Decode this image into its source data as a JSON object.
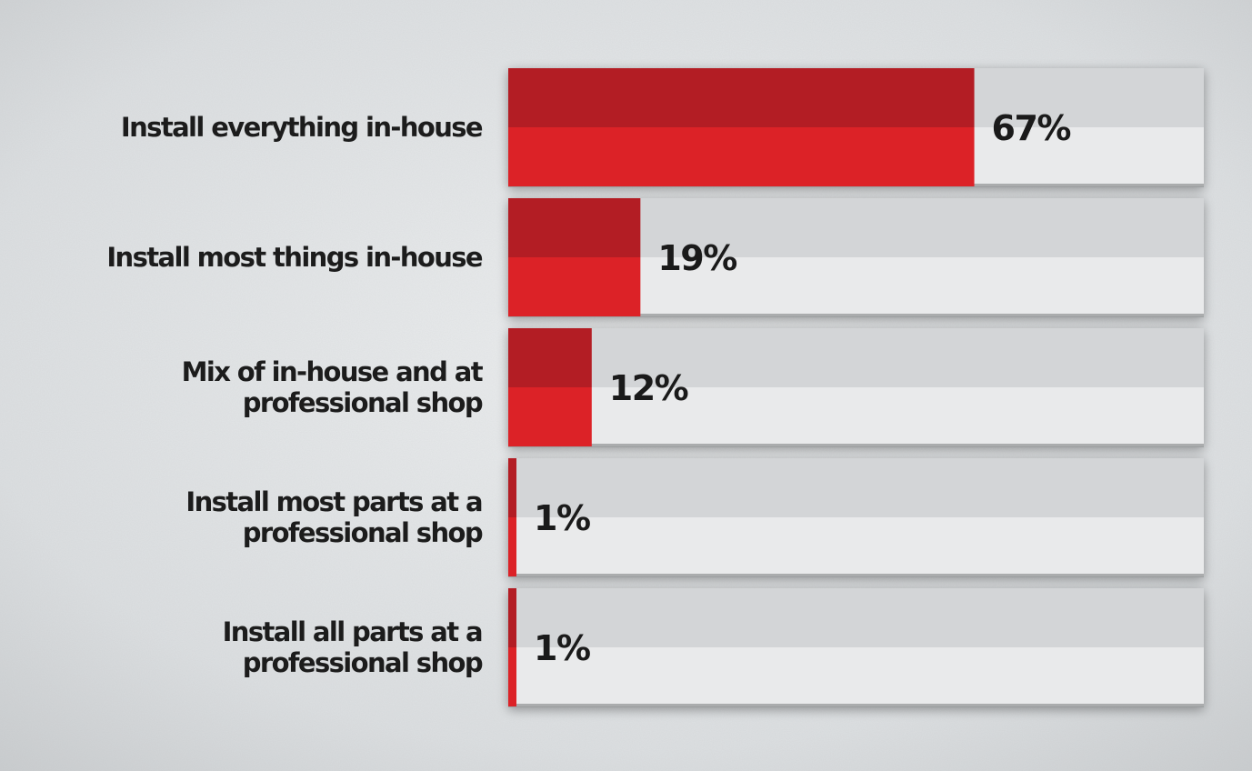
{
  "chart_data": {
    "type": "bar",
    "orientation": "horizontal",
    "categories": [
      [
        "Install everything in-house"
      ],
      [
        "Install most things in-house"
      ],
      [
        "Mix of in-house and at",
        "professional shop"
      ],
      [
        "Install most parts at a",
        "professional shop"
      ],
      [
        "Install all parts at a",
        "professional shop"
      ]
    ],
    "values": [
      67,
      19,
      12,
      1,
      1
    ],
    "value_labels": [
      "67%",
      "19%",
      "12%",
      "1%",
      "1%"
    ],
    "xlim": [
      0,
      100
    ],
    "grid": false,
    "legend": "none",
    "title": "",
    "xlabel": "",
    "ylabel": ""
  },
  "colors": {
    "background": "#d9dcdf",
    "bar_top": "#b31d24",
    "bar_bottom": "#dc2227",
    "track_top": "#d3d5d7",
    "track_bottom": "#e9eaeb",
    "track_shadow": "#8e9193",
    "text": "#1c1c1c"
  }
}
